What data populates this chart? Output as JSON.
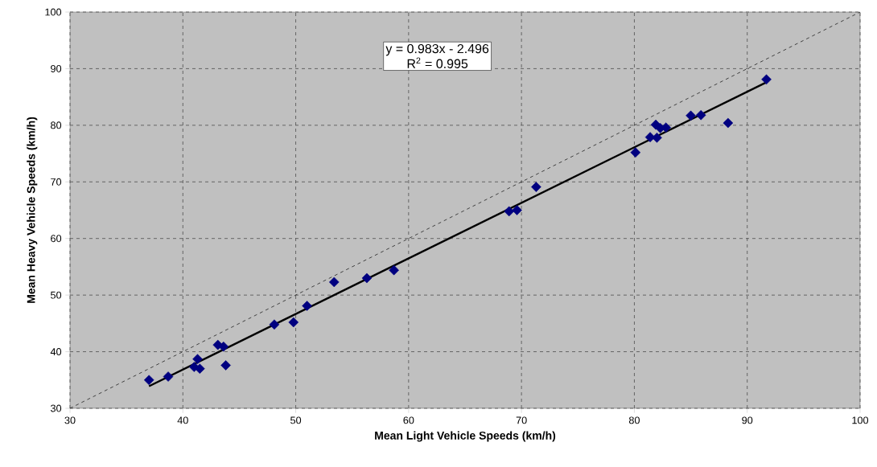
{
  "chart_data": {
    "type": "scatter",
    "xlabel": "Mean Light Vehicle Speeds (km/h)",
    "ylabel": "Mean Heavy Vehicle Speeds (km/h)",
    "annotations": [
      "y = 0.983x - 2.496",
      "R$^{2}$ = 0.995"
    ],
    "xlim": [
      30,
      100
    ],
    "ylim": [
      30,
      100
    ],
    "xticks": [
      30,
      40,
      50,
      60,
      70,
      80,
      90,
      100
    ],
    "yticks": [
      30,
      40,
      50,
      60,
      70,
      80,
      90,
      100
    ],
    "grid": true,
    "series": [
      {
        "marker": "diamond",
        "color": "#000080",
        "x": [
          37.0,
          38.7,
          41.0,
          41.3,
          41.5,
          43.1,
          43.6,
          43.8,
          48.1,
          49.8,
          51.0,
          53.4,
          56.3,
          58.7,
          68.9,
          69.6,
          71.3,
          80.1,
          81.4,
          81.9,
          82.0,
          82.3,
          82.8,
          85.0,
          85.9,
          88.3,
          91.7
        ],
        "values": [
          35.0,
          35.6,
          37.3,
          38.7,
          37.0,
          41.2,
          40.9,
          37.6,
          44.8,
          45.2,
          48.1,
          52.3,
          53.0,
          54.4,
          64.8,
          65.0,
          69.1,
          75.2,
          77.9,
          80.1,
          77.8,
          79.5,
          79.6,
          81.7,
          81.8,
          80.4,
          88.1
        ]
      },
      {
        "type": "line",
        "marker": "none",
        "color": "#000000",
        "line_style": "solid",
        "x": [
          37.0,
          91.7
        ],
        "values": [
          33.9,
          87.6
        ]
      },
      {
        "type": "line",
        "marker": "none",
        "color": "#000000",
        "line_style": "dashed",
        "x": [
          30,
          100
        ],
        "values": [
          30,
          100
        ]
      }
    ]
  }
}
